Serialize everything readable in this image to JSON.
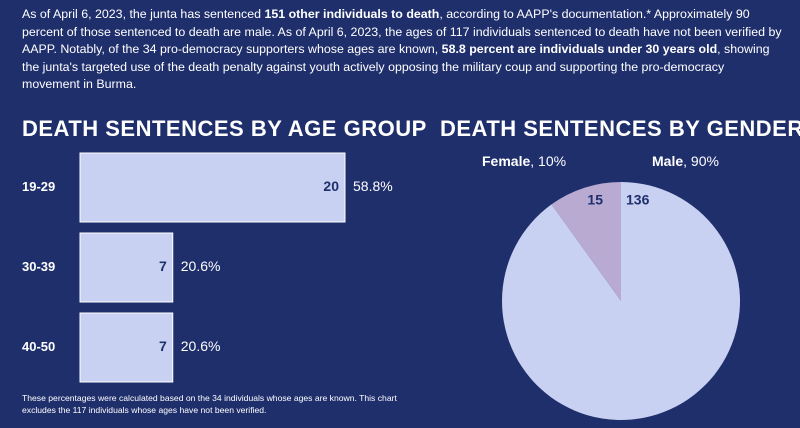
{
  "intro": [
    {
      "text": "As of April 6, 2023, the junta has sentenced ",
      "bold": false
    },
    {
      "text": "151 other individuals to death",
      "bold": true
    },
    {
      "text": ", according to AAPP's documentation.* Approximately 90 percent of those sentenced to death are male. As of April 6, 2023, the ages of 117 individuals sentenced to death have not been verified by AAPP. Notably, of the 34 pro-democracy supporters whose ages are known, ",
      "bold": false
    },
    {
      "text": "58.8 percent are individuals under 30 years old",
      "bold": true
    },
    {
      "text": ", showing the junta's targeted use of the death penalty against youth actively opposing the military coup and supporting the pro-democracy movement in Burma.",
      "bold": false
    }
  ],
  "chart_data": [
    {
      "type": "bar",
      "orientation": "horizontal",
      "title": "DEATH SENTENCES BY AGE GROUP",
      "categories": [
        "19-29",
        "30-39",
        "40-50"
      ],
      "values": [
        20,
        7,
        7
      ],
      "color": "#c9d1f2",
      "percentages": {
        "values": [
          58.8,
          20.6,
          20.6
        ],
        "value_labels": [
          "58.8%",
          "20.6%",
          "20.6%"
        ]
      },
      "footnote": "These percentages were calculated based on the 34 individuals whose ages are known. This chart excludes the 117 individuals whose ages have not been verified."
    },
    {
      "type": "pie",
      "title": "DEATH SENTENCES BY GENDER",
      "categories": [
        "Female",
        "Male"
      ],
      "values": [
        15,
        136
      ],
      "colors": [
        "#b9aad2",
        "#c9d1f2"
      ],
      "percentages": {
        "values": [
          10,
          90
        ],
        "value_labels": [
          "10%",
          "90%"
        ]
      }
    }
  ]
}
